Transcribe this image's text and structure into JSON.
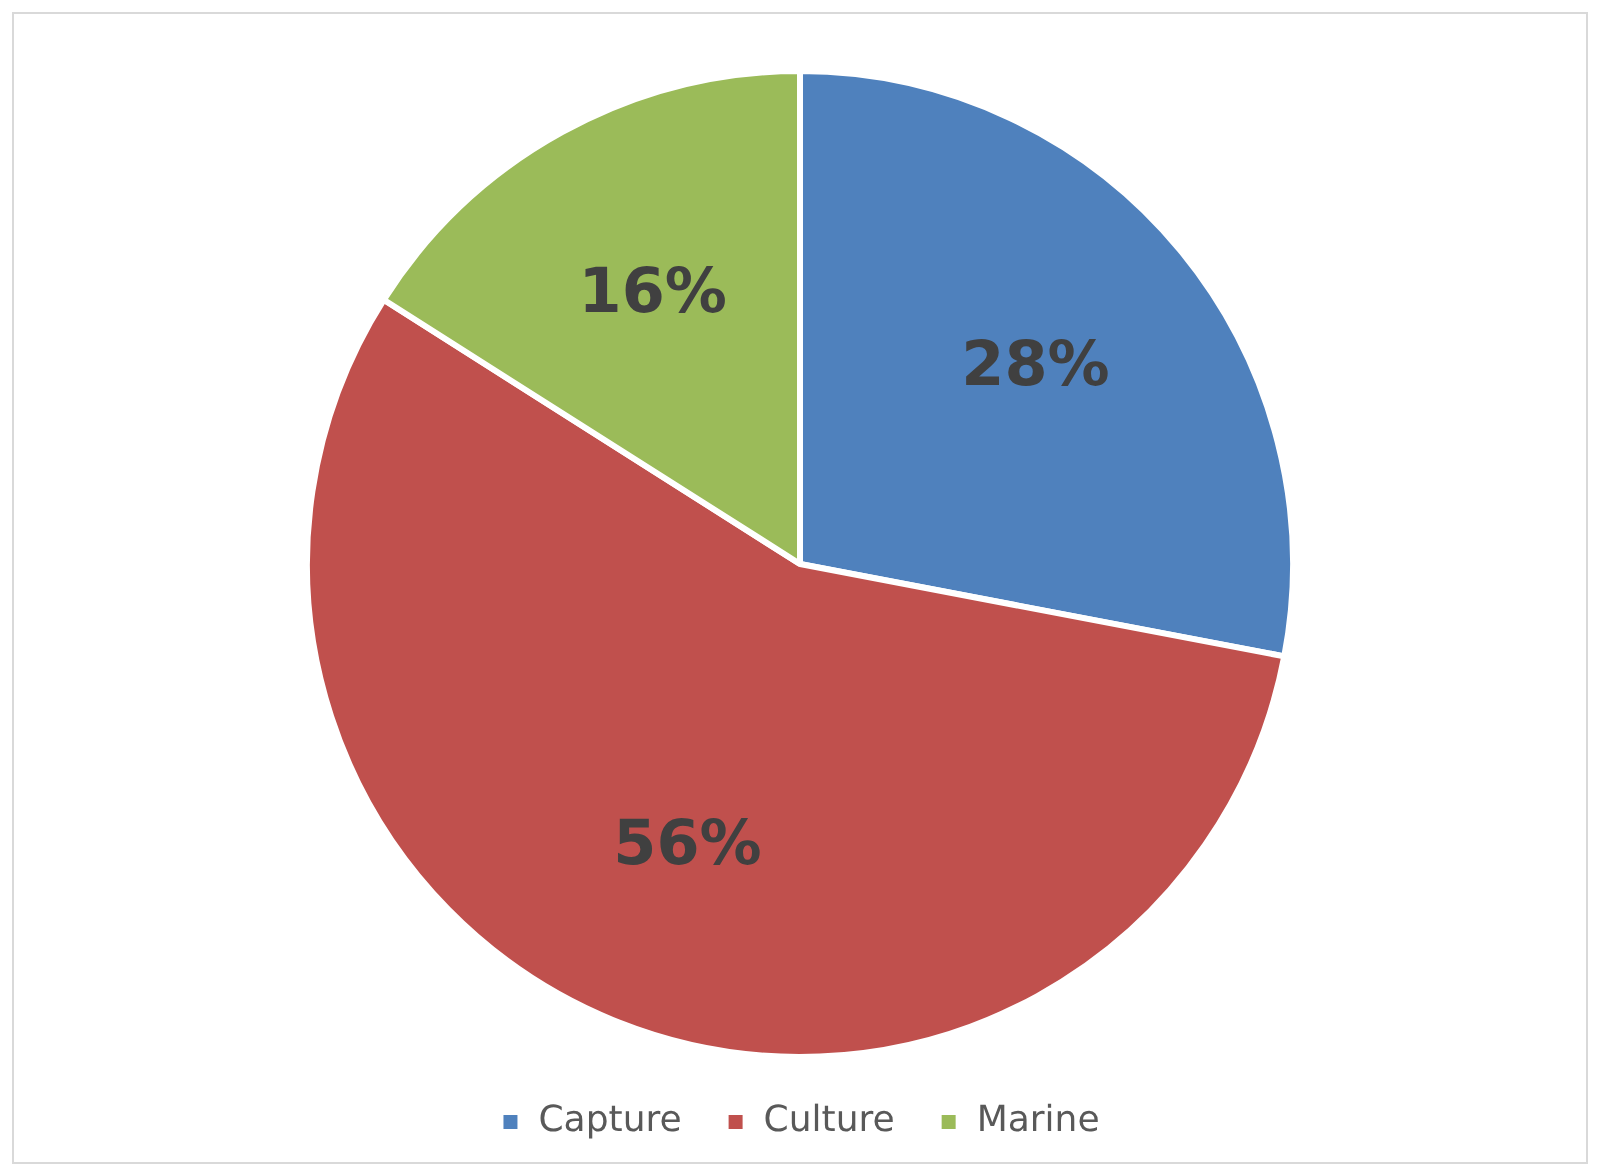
{
  "chart_data": {
    "type": "pie",
    "categories": [
      "Capture",
      "Culture",
      "Marine"
    ],
    "values": [
      28,
      56,
      16
    ],
    "colors": [
      "#4f81bd",
      "#c0504d",
      "#9bbb59"
    ],
    "value_labels": [
      "28%",
      "56%",
      "16%"
    ],
    "legend": "bottom"
  }
}
